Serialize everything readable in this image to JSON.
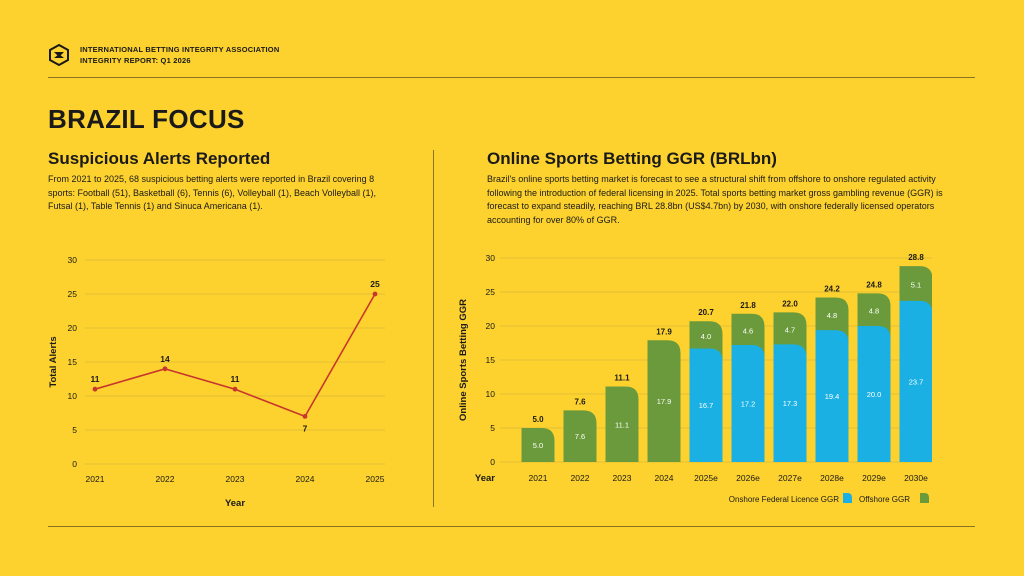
{
  "header": {
    "org_line1": "INTERNATIONAL BETTING INTEGRITY ASSOCIATION",
    "org_line2": "INTEGRITY REPORT: Q1 2026"
  },
  "page_title": "BRAZIL FOCUS",
  "left": {
    "title": "Suspicious Alerts Reported",
    "text": "From 2021 to 2025, 68 suspicious betting alerts were reported in Brazil covering 8 sports: Football (51), Basketball (6), Tennis (6), Volleyball (1), Beach Volleyball (1), Futsal (1), Table Tennis (1) and Sinuca Americana (1)."
  },
  "right": {
    "title": "Online Sports Betting GGR (BRLbn)",
    "text": "Brazil's online sports betting market is forecast to see a structural shift from offshore to onshore regulated activity following the introduction of federal licensing in 2025. Total sports betting market gross gambling revenue (GGR) is forecast to expand steadily, reaching BRL 28.8bn (US$4.7bn) by 2030, with onshore federally licensed operators accounting for over 80% of GGR."
  },
  "colors": {
    "background": "#FDD22E",
    "line": "#C8372D",
    "onshore": "#1BB0E3",
    "offshore": "#6A9A3C",
    "grid": "#C9AE3C",
    "text": "#1a1a1a"
  },
  "chart_data": [
    {
      "type": "line",
      "x": [
        "2021",
        "2022",
        "2023",
        "2024",
        "2025"
      ],
      "values": [
        11,
        14,
        11,
        7,
        25
      ],
      "xlabel": "Year",
      "ylabel": "Total Alerts",
      "ylim": [
        0,
        30
      ],
      "yticks": [
        0,
        5,
        10,
        15,
        20,
        25,
        30
      ],
      "grid": true
    },
    {
      "type": "bar",
      "stacked": true,
      "categories": [
        "2021",
        "2022",
        "2023",
        "2024",
        "2025e",
        "2026e",
        "2027e",
        "2028e",
        "2029e",
        "2030e"
      ],
      "series": [
        {
          "name": "Onshore Federal Licence GGR",
          "values": [
            0,
            0,
            0,
            0,
            16.7,
            17.2,
            17.3,
            19.4,
            20.0,
            23.7
          ]
        },
        {
          "name": "Offshore GGR",
          "values": [
            5.0,
            7.6,
            11.1,
            17.9,
            4.0,
            4.6,
            4.7,
            4.8,
            4.8,
            5.1
          ]
        }
      ],
      "segment_labels": {
        "onshore": [
          "",
          "",
          "",
          "",
          "16.7",
          "17.2",
          "17.3",
          "19.4",
          "20.0",
          "23.7"
        ],
        "offshore": [
          "5.0",
          "7.6",
          "11.1",
          "17.9",
          "4.0",
          "4.6",
          "4.7",
          "4.8",
          "4.8",
          "5.1"
        ]
      },
      "totals": [
        "5.0",
        "7.6",
        "11.1",
        "17.9",
        "20.7",
        "21.8",
        "22.0",
        "24.2",
        "24.8",
        "28.8"
      ],
      "xlabel": "Year",
      "ylabel": "Online Sports Betting GGR",
      "ylim": [
        0,
        30
      ],
      "yticks": [
        0,
        5,
        10,
        15,
        20,
        25,
        30
      ],
      "grid": true,
      "legend_position": "bottom-right"
    }
  ]
}
